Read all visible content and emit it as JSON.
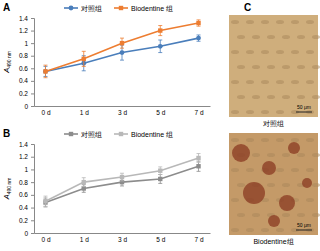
{
  "chart_data": [
    {
      "type": "line",
      "panel": "A",
      "ylabel": {
        "main": "A",
        "sub": "490 nm"
      },
      "categories": [
        "0 d",
        "1 d",
        "3 d",
        "5 d",
        "7 d"
      ],
      "ylim": [
        0,
        1.4
      ],
      "yticks": [
        0,
        0.2,
        0.4,
        0.6,
        0.8,
        1,
        1.2,
        1.4
      ],
      "grid": false,
      "legend": "top",
      "series": [
        {
          "name": "对照组",
          "color": "#4a7ebb",
          "marker": "circle",
          "values": [
            0.55,
            0.68,
            0.85,
            0.95,
            1.08
          ],
          "errors": [
            0.08,
            0.12,
            0.12,
            0.1,
            0.05
          ]
        },
        {
          "name": "Biodentine 组",
          "color": "#ed7d31",
          "marker": "square",
          "values": [
            0.55,
            0.75,
            1.0,
            1.2,
            1.32
          ],
          "errors": [
            0.1,
            0.12,
            0.08,
            0.08,
            0.05
          ]
        }
      ]
    },
    {
      "type": "line",
      "panel": "B",
      "ylabel": {
        "main": "A",
        "sub": "490 nm"
      },
      "categories": [
        "0 d",
        "1 d",
        "3 d",
        "5 d",
        "7 d"
      ],
      "ylim": [
        0,
        1.4
      ],
      "yticks": [
        0,
        0.2,
        0.4,
        0.6,
        0.8,
        1,
        1.2,
        1.4
      ],
      "grid": false,
      "legend": "top",
      "series": [
        {
          "name": "对照组",
          "color": "#8c8c8c",
          "marker": "square",
          "values": [
            0.48,
            0.7,
            0.8,
            0.85,
            1.05
          ],
          "errors": [
            0.07,
            0.06,
            0.06,
            0.07,
            0.08
          ]
        },
        {
          "name": "Biodentine 组",
          "color": "#b8b8b8",
          "marker": "square",
          "values": [
            0.5,
            0.8,
            0.88,
            0.98,
            1.18
          ],
          "errors": [
            0.08,
            0.07,
            0.06,
            0.06,
            0.07
          ]
        }
      ]
    }
  ],
  "images": {
    "panel": "C",
    "items": [
      {
        "scale_bar": "50 μm",
        "caption": "对照组"
      },
      {
        "scale_bar": "50 μm",
        "caption": "Biodentine组"
      }
    ]
  }
}
